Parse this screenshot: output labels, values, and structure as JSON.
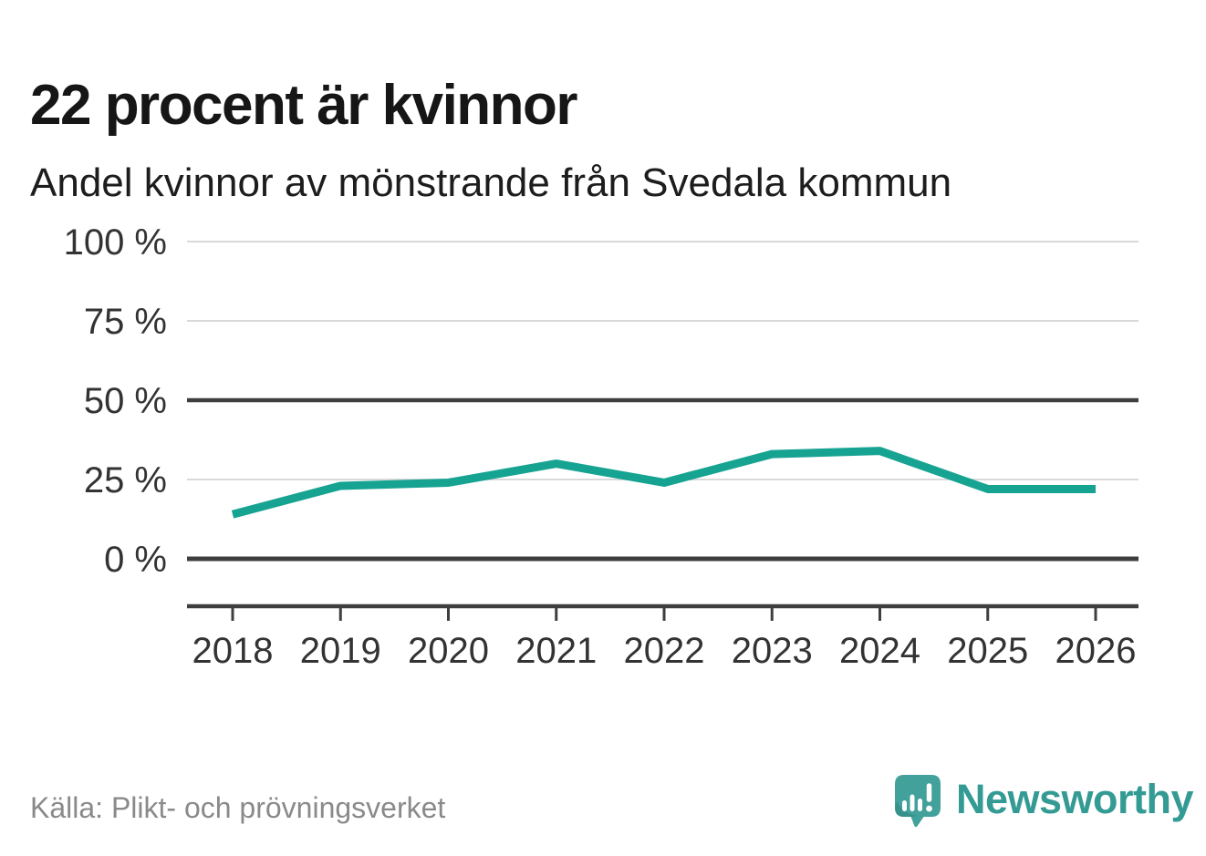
{
  "header": {
    "title": "22 procent är kvinnor",
    "subtitle": "Andel kvinnor av mönstrande från Svedala kommun"
  },
  "chart_data": {
    "type": "line",
    "title": "22 procent är kvinnor",
    "subtitle": "Andel kvinnor av mönstrande från Svedala kommun",
    "x": [
      "2018",
      "2019",
      "2020",
      "2021",
      "2022",
      "2023",
      "2024",
      "2025",
      "2026"
    ],
    "series": [
      {
        "name": "Andel kvinnor av mönstrande",
        "values": [
          14,
          23,
          24,
          30,
          24,
          33,
          34,
          22,
          22
        ]
      }
    ],
    "unit": "%",
    "ylim": [
      0,
      100
    ],
    "yticks": [
      0,
      25,
      50,
      75,
      100
    ],
    "ytick_labels": [
      "0 %",
      "25 %",
      "50 %",
      "75 %",
      "100 %"
    ],
    "reference_line": 50,
    "grid": "horizontal",
    "legend_position": "none",
    "line_color": "#16a392"
  },
  "footer": {
    "source": "Källa: Plikt- och prövningsverket",
    "brand": "Newsworthy"
  },
  "icons": {
    "logo": "newsworthy-speech-bubble-bar-chart-icon"
  },
  "colors": {
    "accent_line": "#16a392",
    "grid_light": "#d9d9d9",
    "grid_dark": "#3e3e3e",
    "axis_text": "#333333",
    "title_text": "#161616",
    "source_text": "#8a8a8a",
    "brand_teal": "#349b94",
    "logo_bubble": "#42a19a",
    "background": "#ffffff"
  }
}
